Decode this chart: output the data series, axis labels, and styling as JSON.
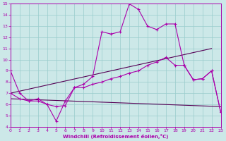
{
  "xlabel": "Windchill (Refroidissement éolien,°C)",
  "xlim": [
    0,
    23
  ],
  "ylim": [
    4,
    15
  ],
  "xticks": [
    0,
    1,
    2,
    3,
    4,
    5,
    6,
    7,
    8,
    9,
    10,
    11,
    12,
    13,
    14,
    15,
    16,
    17,
    18,
    19,
    20,
    21,
    22,
    23
  ],
  "yticks": [
    4,
    5,
    6,
    7,
    8,
    9,
    10,
    11,
    12,
    13,
    14,
    15
  ],
  "bg_color": "#cce8e8",
  "line_color": "#aa00aa",
  "grid_color": "#99cccc",
  "line1_x": [
    0,
    1,
    2,
    3,
    4,
    5,
    6,
    7,
    8,
    9,
    10,
    11,
    12,
    13,
    14,
    15,
    16,
    17,
    18,
    19,
    20,
    21,
    22,
    23
  ],
  "line1_y": [
    9.0,
    7.0,
    6.3,
    6.3,
    6.0,
    4.5,
    6.3,
    7.5,
    7.8,
    8.5,
    12.5,
    12.3,
    12.5,
    15.0,
    14.5,
    13.0,
    12.7,
    13.2,
    13.2,
    9.5,
    8.2,
    8.3,
    9.0,
    5.3
  ],
  "line2_x": [
    0,
    1,
    2,
    3,
    4,
    5,
    6,
    7,
    8,
    9,
    10,
    11,
    12,
    13,
    14,
    15,
    16,
    17,
    18,
    19,
    20,
    21,
    22,
    23
  ],
  "line2_y": [
    7.0,
    6.5,
    6.3,
    6.5,
    6.0,
    5.8,
    5.9,
    7.5,
    7.5,
    7.8,
    8.0,
    8.3,
    8.5,
    8.8,
    9.0,
    9.5,
    9.8,
    10.2,
    9.5,
    9.5,
    8.2,
    8.3,
    9.0,
    5.3
  ],
  "line3_x": [
    0,
    23
  ],
  "line3_y": [
    6.5,
    5.8
  ],
  "line4_x": [
    0,
    22
  ],
  "line4_y": [
    7.0,
    11.0
  ]
}
